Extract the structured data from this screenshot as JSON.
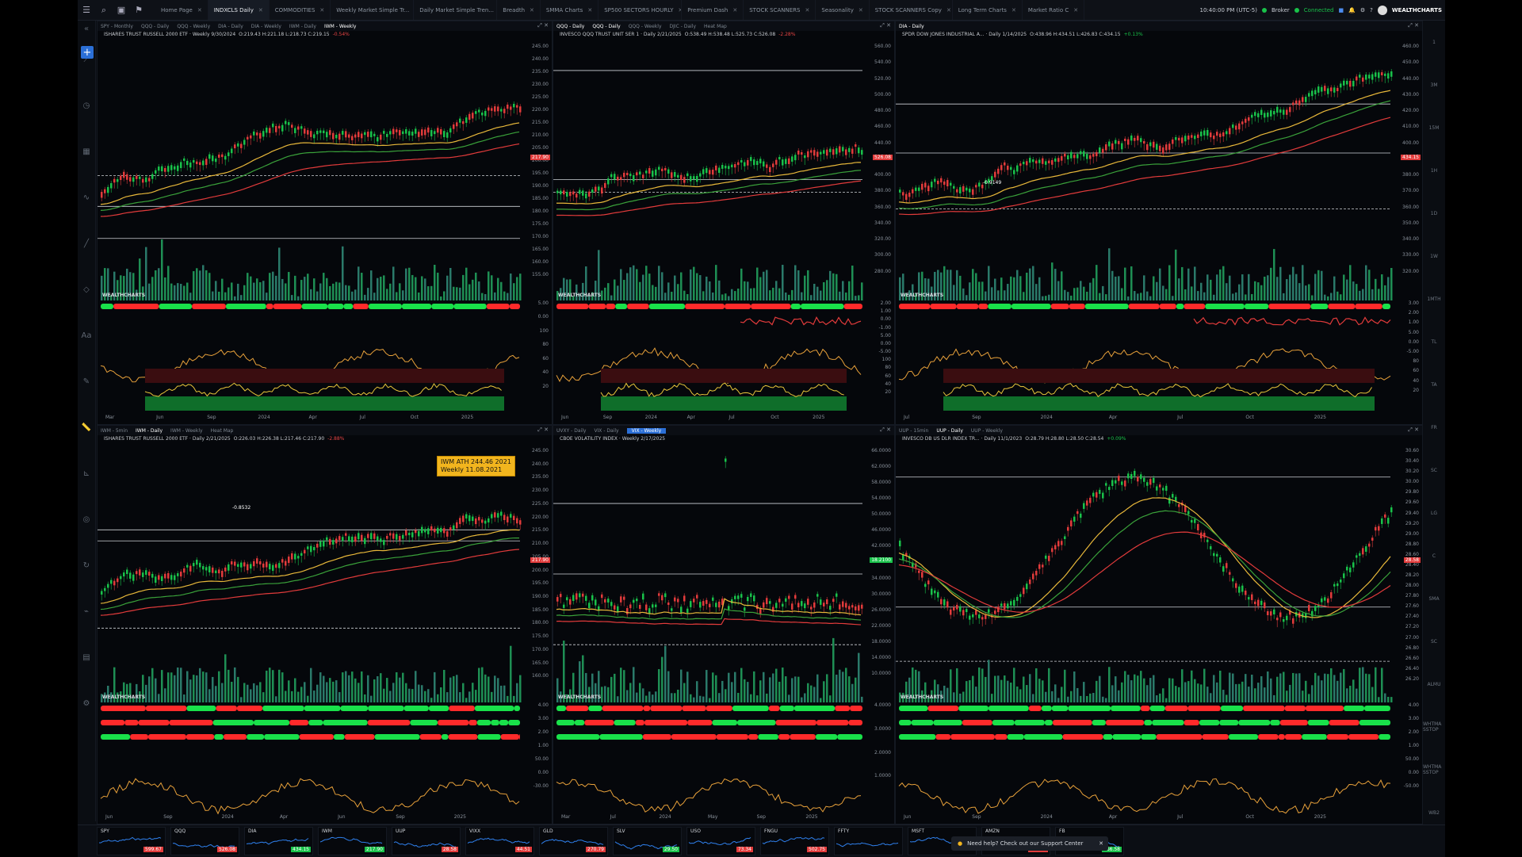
{
  "topbar": {
    "tabs": [
      "Home Page",
      "INDXCLS Daily",
      "COMMODITIES",
      "Weekly Market Simple Tr...",
      "Daily Market Simple Tren...",
      "Breadth",
      "SMMA Charts",
      "SP500 SECTORS HOURLY",
      "Premium Dash",
      "STOCK SCANNERS",
      "Seasonality",
      "STOCK SCANNERS Copy",
      "Long Term Charts",
      "Market Ratio C"
    ],
    "active_tab": "INDXCLS Daily",
    "clock": "10:40:00 PM (UTC-5)",
    "broker": "Broker",
    "status": "Connected",
    "brand": "WEALTHCHARTS"
  },
  "colors": {
    "accent": "#2b6fd6",
    "bull": "#19c24a",
    "bear": "#e23b3b",
    "signal": "#f2b51e"
  },
  "right_toolbar": [
    "1",
    "3M",
    "15M",
    "1H",
    "1D",
    "1W",
    "1MTH",
    "TL",
    "TA",
    "FR",
    "SC",
    "LG",
    "C",
    "SMA",
    "SC",
    "ALMU",
    "WHTMA SSTOP",
    "WHTMA SSTOP",
    "WB2"
  ],
  "panels": [
    {
      "tabs": [
        "SPY - Monthly",
        "QQQ - Daily",
        "QQQ - Weekly",
        "DIA - Daily",
        "DIA - Weekly",
        "IWM - Daily",
        "IWM - Weekly"
      ],
      "active_tab": "IWM - Weekly",
      "title": "ISHARES TRUST RUSSELL 2000 ETF · Weekly 9/30/2024",
      "ohlc": "O:219.43 H:221.18 L:218.73 C:219.15",
      "change": "-0.54%",
      "y_ticks": [
        "245.00",
        "240.00",
        "235.00",
        "230.00",
        "225.00",
        "220.00",
        "215.00",
        "210.00",
        "205.00",
        "200.00",
        "195.00",
        "190.00",
        "185.00",
        "180.00",
        "175.00",
        "170.00",
        "165.00",
        "160.00",
        "155.00"
      ],
      "x_ticks": [
        "Mar",
        "Jun",
        "Sep",
        "2024",
        "Apr",
        "Jul",
        "Oct",
        "2025"
      ],
      "price": "217.90",
      "osc_ticks": [
        "5.00",
        "0.00",
        "100",
        "80",
        "60",
        "40",
        "20"
      ]
    },
    {
      "tabs": [
        "QQQ - Daily",
        "QQQ - Daily",
        "QQQ - Weekly",
        "DJIC - Daily",
        "Heat Map"
      ],
      "active_tab": "QQQ - Daily",
      "title": "INVESCO QQQ TRUST UNIT SER 1 · Daily 2/21/2025",
      "ohlc": "O:538.49 H:538.48 L:525.73 C:526.08",
      "change": "-2.28%",
      "y_ticks": [
        "560.00",
        "540.00",
        "520.00",
        "500.00",
        "480.00",
        "460.00",
        "440.00",
        "420.00",
        "400.00",
        "380.00",
        "360.00",
        "340.00",
        "320.00",
        "300.00",
        "280.00"
      ],
      "x_ticks": [
        "Jun",
        "Sep",
        "2024",
        "Apr",
        "Jul",
        "Oct",
        "2025"
      ],
      "price": "526.08",
      "osc_ticks": [
        "2.00",
        "1.00",
        "0.00",
        "-1.00",
        "5.00",
        "0.00",
        "-5.00",
        "100",
        "80",
        "60",
        "40",
        "20"
      ]
    },
    {
      "tabs": [
        "DIA - Daily"
      ],
      "active_tab": "DIA - Daily",
      "title": "SPDR DOW JONES INDUSTRIAL A... · Daily 1/14/2025",
      "ohlc": "O:438.96 H:434.51 L:426.83 C:434.15",
      "change": "+0.13%",
      "y_ticks": [
        "460.00",
        "450.00",
        "440.00",
        "430.00",
        "420.00",
        "410.00",
        "400.00",
        "390.00",
        "380.00",
        "370.00",
        "360.00",
        "350.00",
        "340.00",
        "330.00",
        "320.00"
      ],
      "x_ticks": [
        "Jul",
        "Sep",
        "2024",
        "Apr",
        "Jul",
        "Oct",
        "2025"
      ],
      "price": "434.15",
      "annotation": "-0.9149",
      "osc_ticks": [
        "3.00",
        "2.00",
        "1.00",
        "5.00",
        "0.00",
        "-5.00",
        "80",
        "60",
        "40",
        "20"
      ]
    },
    {
      "tabs": [
        "IWM - 5min",
        "IWM - Daily",
        "IWM - Weekly",
        "Heat Map"
      ],
      "active_tab": "IWM - Daily",
      "title": "ISHARES TRUST RUSSELL 2000 ETF · Daily 2/21/2025",
      "ohlc": "O:226.03 H:226.38 L:217.46 C:217.90",
      "change": "-2.88%",
      "callout": [
        "IWM ATH 244.46 2021",
        "Weekly 11.08.2021"
      ],
      "annotation": "-0.8532",
      "y_ticks": [
        "245.00",
        "240.00",
        "235.00",
        "230.00",
        "225.00",
        "220.00",
        "215.00",
        "210.00",
        "205.00",
        "200.00",
        "195.00",
        "190.00",
        "185.00",
        "180.00",
        "175.00",
        "170.00",
        "165.00",
        "160.00"
      ],
      "x_ticks": [
        "Jun",
        "Sep",
        "2024",
        "Apr",
        "Jun",
        "Sep",
        "2025"
      ],
      "price": "217.90",
      "osc_ticks": [
        "4.00",
        "3.00",
        "2.00",
        "1.00",
        "50.00",
        "0.00",
        "-30.00"
      ]
    },
    {
      "tabs": [
        "UVXY - Daily",
        "VIX - Daily",
        "VIX - Weekly"
      ],
      "active_tab": "VIX - Weekly",
      "title": "CBOE VOLATILITY INDEX · Weekly 2/17/2025",
      "y_ticks": [
        "66.0000",
        "62.0000",
        "58.0000",
        "54.0000",
        "50.0000",
        "46.0000",
        "42.0000",
        "38.0000",
        "34.0000",
        "30.0000",
        "26.0000",
        "22.0000",
        "18.0000",
        "14.0000",
        "10.0000"
      ],
      "x_ticks": [
        "Mar",
        "Jul",
        "2024",
        "May",
        "Sep",
        "2025"
      ],
      "price": "18.2100",
      "osc_ticks": [
        "4.0000",
        "3.0000",
        "2.0000",
        "1.0000"
      ]
    },
    {
      "tabs": [
        "UUP - 15min",
        "UUP - Daily",
        "UUP - Weekly"
      ],
      "active_tab": "UUP - Daily",
      "title": "INVESCO DB US DLR INDEX TR... · Daily 11/1/2023",
      "ohlc": "O:28.79 H:28.80 L:28.50 C:28.54",
      "change": "+0.09%",
      "y_ticks": [
        "30.60",
        "30.40",
        "30.20",
        "30.00",
        "29.80",
        "29.60",
        "29.40",
        "29.20",
        "29.00",
        "28.80",
        "28.60",
        "28.40",
        "28.20",
        "28.00",
        "27.80",
        "27.60",
        "27.40",
        "27.20",
        "27.00",
        "26.80",
        "26.60",
        "26.40",
        "26.20"
      ],
      "x_ticks": [
        "Jun",
        "Sep",
        "2024",
        "Apr",
        "Jul",
        "Oct",
        "2025"
      ],
      "price": "28.58",
      "osc_ticks": [
        "4.00",
        "3.00",
        "2.00",
        "1.00",
        "50.00",
        "0.00",
        "-50.00"
      ]
    }
  ],
  "watchlist": [
    {
      "sym": "SPY",
      "val": "599.67",
      "color": "#e23b3b"
    },
    {
      "sym": "QQQ",
      "val": "526.08",
      "color": "#e23b3b"
    },
    {
      "sym": "DIA",
      "val": "434.15",
      "color": "#19c24a"
    },
    {
      "sym": "IWM",
      "val": "217.90",
      "color": "#19c24a"
    },
    {
      "sym": "UUP",
      "val": "28.58",
      "color": "#e23b3b"
    },
    {
      "sym": "VIXX",
      "val": "44.51",
      "color": "#e23b3b"
    },
    {
      "sym": "GLD",
      "val": "270.79",
      "color": "#e23b3b"
    },
    {
      "sym": "SLV",
      "val": "29.50",
      "color": "#19c24a"
    },
    {
      "sym": "USO",
      "val": "73.34",
      "color": "#e23b3b"
    },
    {
      "sym": "FNGU",
      "val": "502.75",
      "color": "#e23b3b"
    },
    {
      "sym": "FFTY",
      "val": "",
      "color": "#e23b3b"
    },
    {
      "sym": "MSFT",
      "val": "",
      "color": "#e23b3b"
    },
    {
      "sym": "AMZN",
      "val": "216.80",
      "color": "#e23b3b"
    },
    {
      "sym": "FB",
      "val": "166.58",
      "color": "#19c24a"
    }
  ],
  "support_toast": "Need help? Check out our Support Center"
}
